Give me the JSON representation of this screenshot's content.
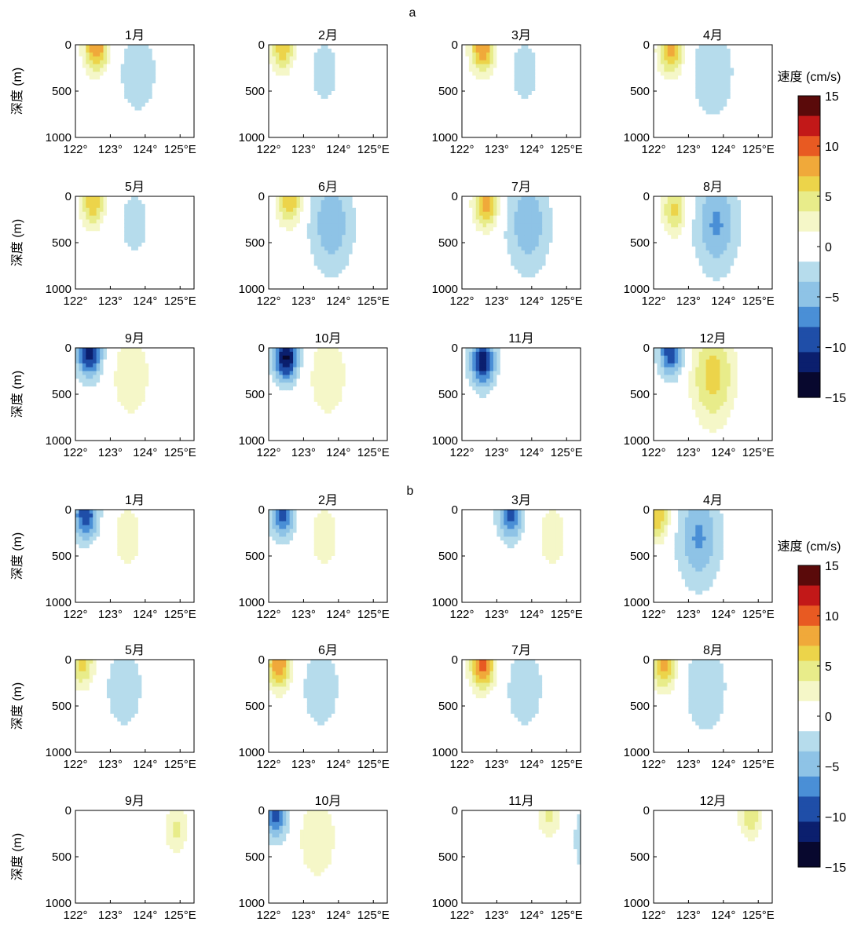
{
  "figure": {
    "block_labels": [
      "a",
      "b"
    ],
    "colorbar": {
      "title": "速度 (cm/s)",
      "ticks": [
        "15",
        "10",
        "5",
        "0",
        "−5",
        "−10",
        "−15"
      ],
      "tick_values": [
        15,
        10,
        5,
        0,
        -5,
        -10,
        -15
      ],
      "range": [
        -15,
        15
      ],
      "colors": [
        "#08082e",
        "#0b1f6e",
        "#1f4ea8",
        "#4a8fd6",
        "#8ec3e6",
        "#b6dcec",
        "#ffffff",
        "#f5f7c8",
        "#e8ec8a",
        "#ecd44a",
        "#f0a93a",
        "#e85a22",
        "#c21818",
        "#5a0a0a"
      ]
    },
    "x_ticks": [
      "122°",
      "123°",
      "124°",
      "125°E"
    ],
    "x_tick_values": [
      122,
      123,
      124,
      125
    ],
    "y_ticks": [
      "0",
      "500",
      "1000"
    ],
    "y_tick_values": [
      0,
      500,
      1000
    ],
    "y_label": "深度 (m)"
  },
  "chart_data": [
    {
      "id": "a",
      "type": "heatmap",
      "description_free": true,
      "xlim": [
        122,
        125.4
      ],
      "ylim": [
        0,
        1000
      ],
      "panels": [
        {
          "title": "1月",
          "max": 9,
          "min": -4,
          "core_lon": 122.6,
          "core_depth": 30,
          "sign": 1
        },
        {
          "title": "2月",
          "max": 7,
          "min": -3,
          "core_lon": 122.4,
          "core_depth": 20,
          "sign": 1
        },
        {
          "title": "3月",
          "max": 9,
          "min": -3,
          "core_lon": 122.6,
          "core_depth": 40,
          "sign": 1
        },
        {
          "title": "4月",
          "max": 8,
          "min": -5,
          "core_lon": 122.5,
          "core_depth": 60,
          "sign": 1
        },
        {
          "title": "5月",
          "max": 7,
          "min": -3,
          "core_lon": 122.5,
          "core_depth": 60,
          "sign": 1
        },
        {
          "title": "6月",
          "max": 7,
          "min": -8,
          "core_lon": 122.6,
          "core_depth": 50,
          "sign": 1
        },
        {
          "title": "7月",
          "max": 8,
          "min": -8,
          "core_lon": 122.7,
          "core_depth": 80,
          "sign": 1
        },
        {
          "title": "8月",
          "max": 6,
          "min": -9,
          "core_lon": 122.6,
          "core_depth": 150,
          "sign": 1
        },
        {
          "title": "9月",
          "max": 4,
          "min": -12,
          "core_lon": 122.4,
          "core_depth": 50,
          "sign": -1
        },
        {
          "title": "10月",
          "max": 4,
          "min": -13,
          "core_lon": 122.5,
          "core_depth": 100,
          "sign": -1
        },
        {
          "title": "11月",
          "max": 2,
          "min": -12,
          "core_lon": 122.6,
          "core_depth": 150,
          "sign": -1
        },
        {
          "title": "12月",
          "max": 9,
          "min": -10,
          "core_lon": 122.5,
          "core_depth": 40,
          "sign": -1
        }
      ]
    },
    {
      "id": "b",
      "type": "heatmap",
      "xlim": [
        122,
        125.4
      ],
      "ylim": [
        0,
        1000
      ],
      "panels": [
        {
          "title": "1月",
          "max": 3,
          "min": -10,
          "core_lon": 122.3,
          "core_depth": 60,
          "sign": -1
        },
        {
          "title": "2月",
          "max": 3,
          "min": -9,
          "core_lon": 122.4,
          "core_depth": 40,
          "sign": -1
        },
        {
          "title": "3月",
          "max": 3,
          "min": -9,
          "core_lon": 123.4,
          "core_depth": 60,
          "sign": -1
        },
        {
          "title": "4月",
          "max": 7,
          "min": -9,
          "core_lon": 122.1,
          "core_depth": 80,
          "sign": 1
        },
        {
          "title": "5月",
          "max": 6,
          "min": -4,
          "core_lon": 122.2,
          "core_depth": 40,
          "sign": 1
        },
        {
          "title": "6月",
          "max": 9,
          "min": -4,
          "core_lon": 122.3,
          "core_depth": 60,
          "sign": 1
        },
        {
          "title": "7月",
          "max": 10,
          "min": -4,
          "core_lon": 122.6,
          "core_depth": 60,
          "sign": 1
        },
        {
          "title": "8月",
          "max": 8,
          "min": -5,
          "core_lon": 122.3,
          "core_depth": 60,
          "sign": 1
        },
        {
          "title": "9月",
          "max": 4,
          "min": -5,
          "core_lon": 124.9,
          "core_depth": 200,
          "sign": 1
        },
        {
          "title": "10月",
          "max": 4,
          "min": -9,
          "core_lon": 122.2,
          "core_depth": 40,
          "sign": -1
        },
        {
          "title": "11月",
          "max": 4,
          "min": -4,
          "core_lon": 124.5,
          "core_depth": 40,
          "sign": 1
        },
        {
          "title": "12月",
          "max": 5,
          "min": -5,
          "core_lon": 124.8,
          "core_depth": 40,
          "sign": 1
        }
      ]
    }
  ]
}
